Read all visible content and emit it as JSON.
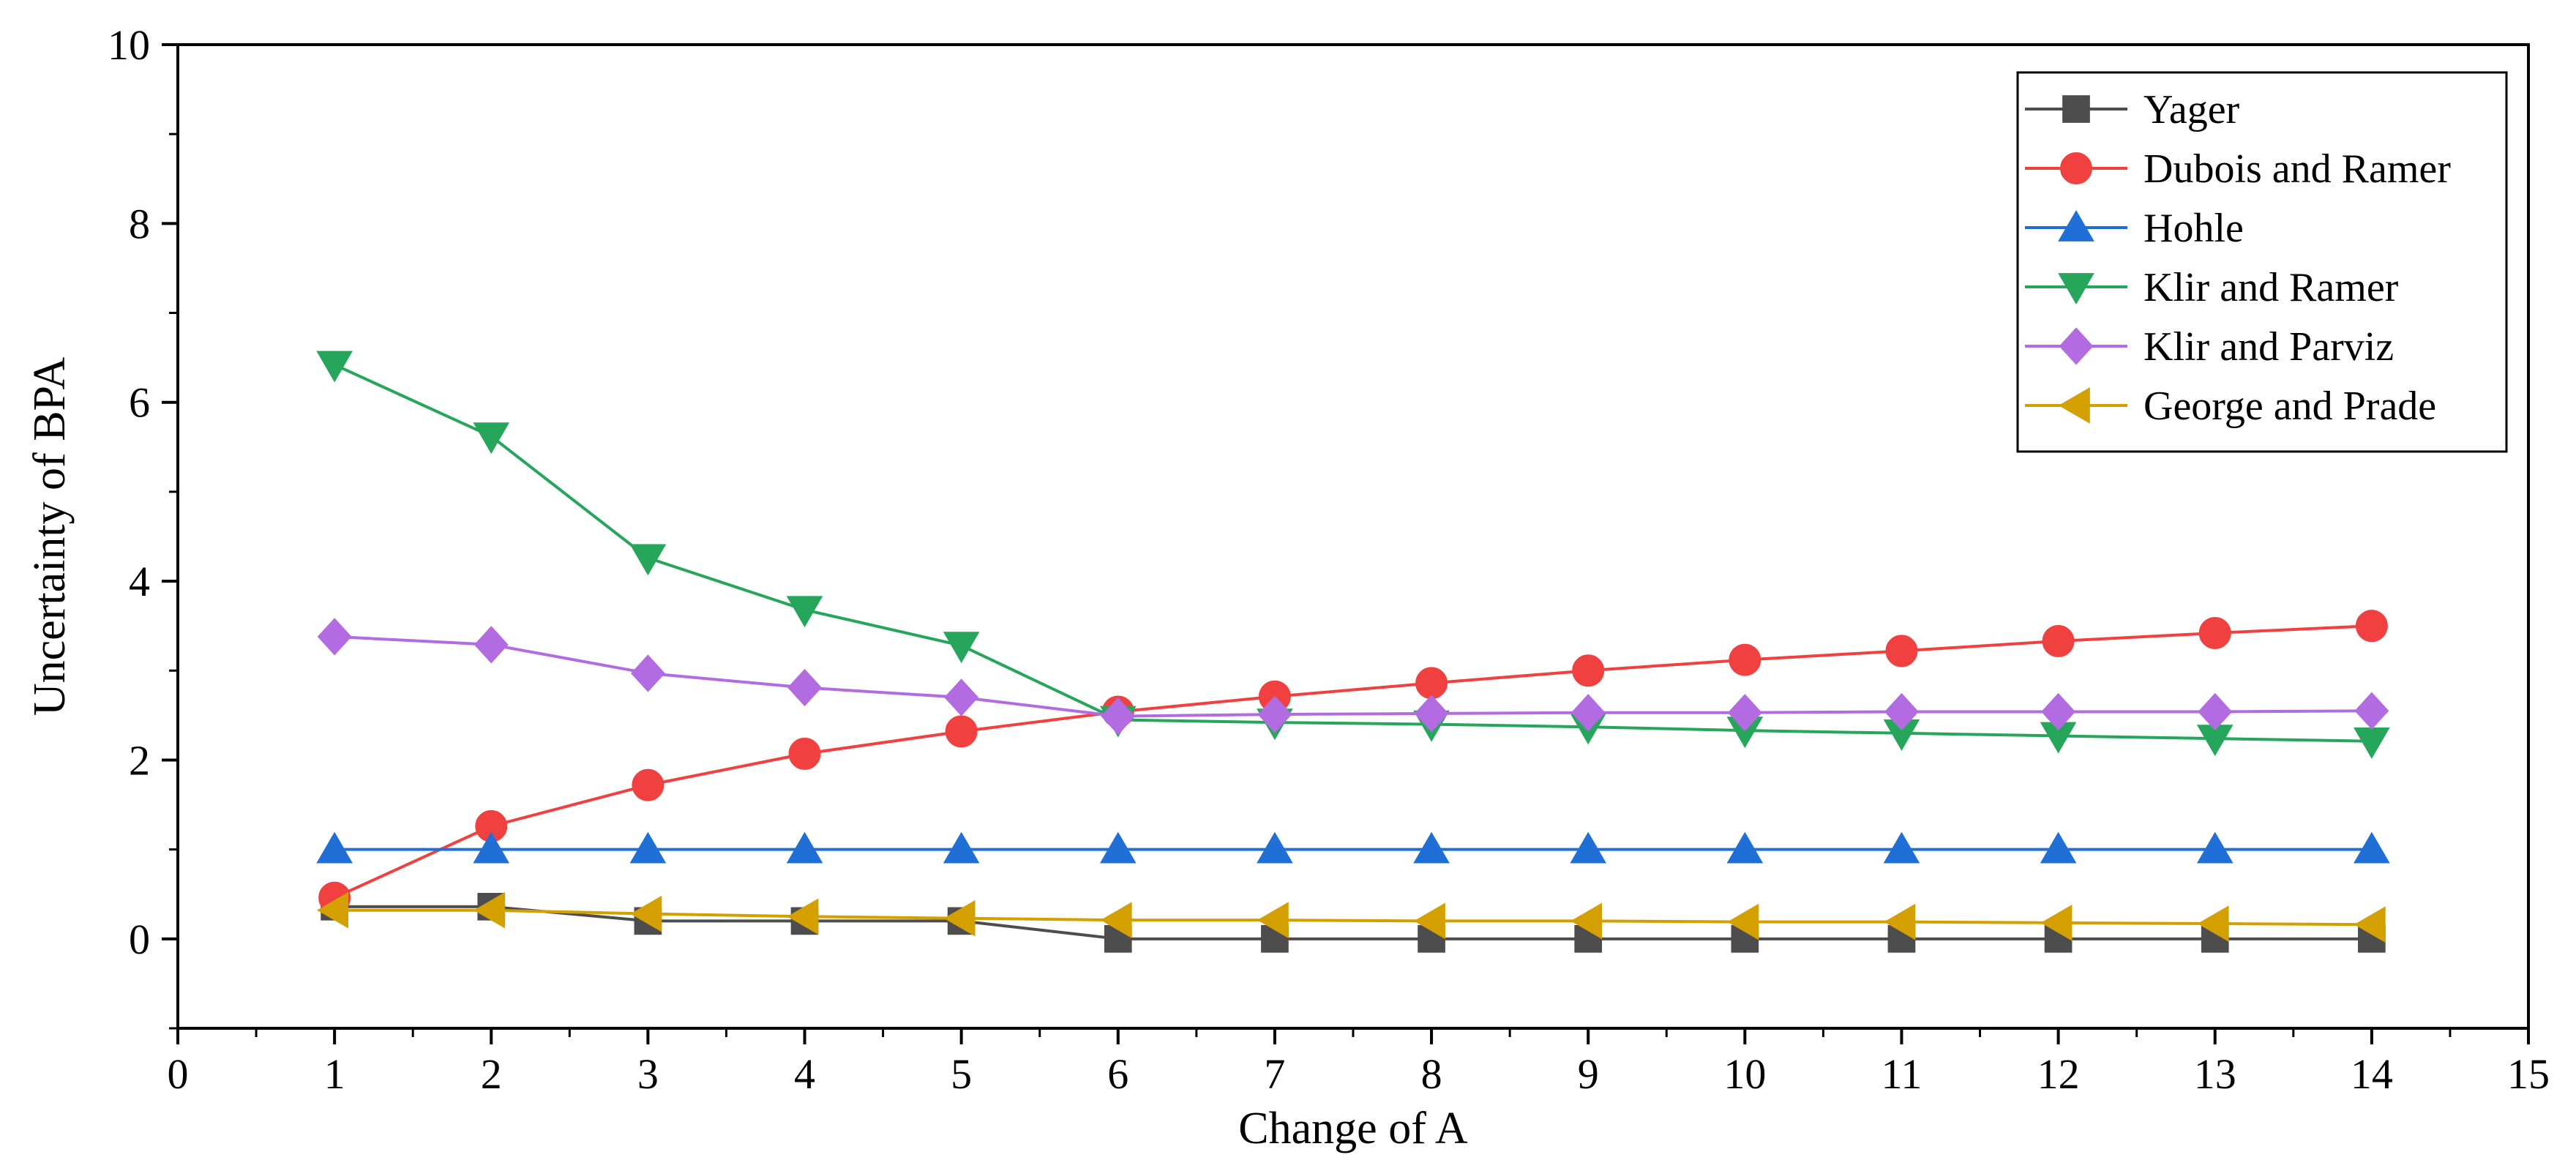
{
  "chart_data": {
    "type": "line",
    "title": "",
    "xlabel": "Change of A",
    "ylabel": "Uncertainty of BPA",
    "xlim": [
      0,
      15
    ],
    "ylim": [
      -1,
      10
    ],
    "xticks": [
      0,
      1,
      2,
      3,
      4,
      5,
      6,
      7,
      8,
      9,
      10,
      11,
      12,
      13,
      14,
      15
    ],
    "yticks": [
      0,
      2,
      4,
      6,
      8,
      10
    ],
    "legend_position": "top-right",
    "x": [
      1,
      2,
      3,
      4,
      5,
      6,
      7,
      8,
      9,
      10,
      11,
      12,
      13,
      14
    ],
    "series": [
      {
        "name": "Yager",
        "color": "#4d4d4d",
        "marker": "square",
        "values": [
          0.36,
          0.36,
          0.2,
          0.2,
          0.2,
          0,
          0,
          0,
          0,
          0,
          0,
          0,
          0,
          0
        ]
      },
      {
        "name": "Dubois and Ramer",
        "color": "#f04040",
        "marker": "circle",
        "values": [
          0.46,
          1.26,
          1.72,
          2.07,
          2.32,
          2.54,
          2.71,
          2.86,
          3.0,
          3.12,
          3.22,
          3.33,
          3.42,
          3.5
        ]
      },
      {
        "name": "Hohle",
        "color": "#1f6fd6",
        "marker": "triangle-up",
        "values": [
          1.0,
          1.0,
          1.0,
          1.0,
          1.0,
          1.0,
          1.0,
          1.0,
          1.0,
          1.0,
          1.0,
          1.0,
          1.0,
          1.0
        ]
      },
      {
        "name": "Klir and Ramer",
        "color": "#26a65b",
        "marker": "triangle-down",
        "values": [
          6.42,
          5.62,
          4.26,
          3.68,
          3.28,
          2.45,
          2.42,
          2.4,
          2.37,
          2.33,
          2.3,
          2.27,
          2.24,
          2.21
        ]
      },
      {
        "name": "Klir and Parviz",
        "color": "#b26be0",
        "marker": "diamond",
        "values": [
          3.38,
          3.29,
          2.97,
          2.81,
          2.7,
          2.49,
          2.51,
          2.52,
          2.53,
          2.53,
          2.54,
          2.54,
          2.54,
          2.55
        ]
      },
      {
        "name": "George and Prade",
        "color": "#d4a000",
        "marker": "triangle-left",
        "values": [
          0.32,
          0.32,
          0.28,
          0.25,
          0.23,
          0.21,
          0.21,
          0.2,
          0.2,
          0.19,
          0.19,
          0.18,
          0.17,
          0.16
        ]
      }
    ]
  }
}
